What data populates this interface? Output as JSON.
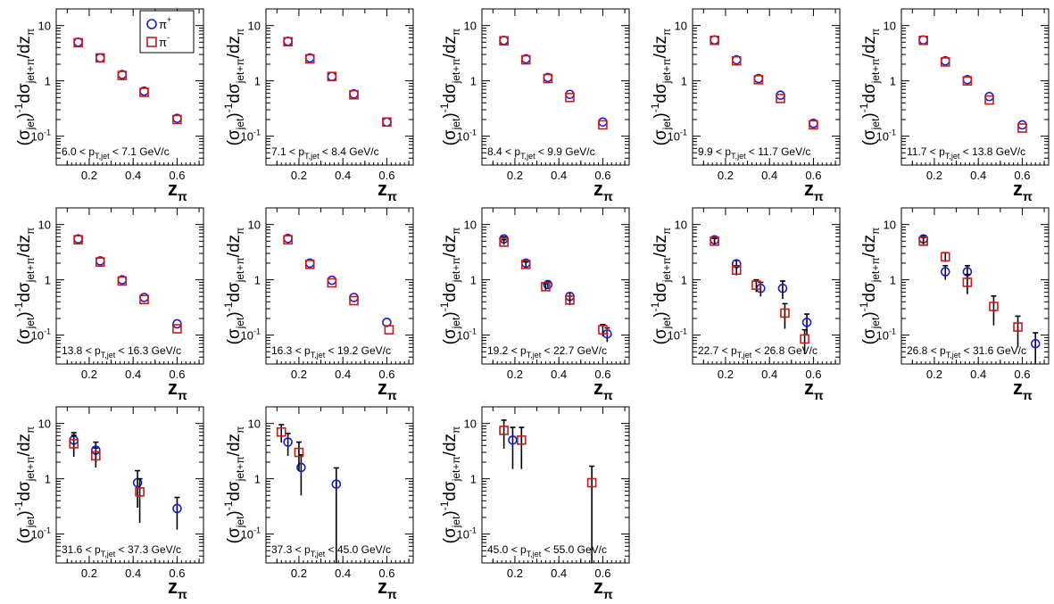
{
  "chart_data": {
    "type": "scatter",
    "yscale": "log",
    "ylim": [
      0.03,
      20
    ],
    "xlim": [
      0.05,
      0.72
    ],
    "xticks": [
      "0.2",
      "0.4",
      "0.6"
    ],
    "xtick_values": [
      0.2,
      0.4,
      0.6
    ],
    "yticks": [
      {
        "value": 10,
        "base": "10",
        "exp": ""
      },
      {
        "value": 1,
        "base": "1",
        "exp": ""
      },
      {
        "value": 0.1,
        "base": "10",
        "exp": "-1"
      }
    ],
    "xlabel": {
      "main": "z",
      "sub": "π"
    },
    "ylabel": {
      "p1": "(σ",
      "s1": "jet",
      "p2": ")",
      "sup": "-1",
      "p3": "dσ",
      "s2": "jet+π",
      "p4": "/dz",
      "s3": "π"
    },
    "legend": [
      {
        "name": "π",
        "sup": "+",
        "color": "#1a1ad6",
        "marker": "circle"
      },
      {
        "name": "π",
        "sup": "-",
        "color": "#cc1a1a",
        "marker": "square"
      }
    ],
    "legend_placement": "top-right of first panel",
    "panels": [
      {
        "lo": "6.0",
        "hi": "7.1",
        "unit": "GeV/c",
        "var": "p",
        "var_sub": "T,jet",
        "pi_plus": [
          {
            "x": 0.15,
            "y": 5.0
          },
          {
            "x": 0.25,
            "y": 2.6
          },
          {
            "x": 0.35,
            "y": 1.3
          },
          {
            "x": 0.45,
            "y": 0.65
          },
          {
            "x": 0.6,
            "y": 0.21
          }
        ],
        "pi_minus": [
          {
            "x": 0.15,
            "y": 4.9
          },
          {
            "x": 0.25,
            "y": 2.6
          },
          {
            "x": 0.35,
            "y": 1.25
          },
          {
            "x": 0.45,
            "y": 0.62
          },
          {
            "x": 0.6,
            "y": 0.2
          }
        ]
      },
      {
        "lo": "7.1",
        "hi": "8.4",
        "unit": "GeV/c",
        "var": "p",
        "var_sub": "T,jet",
        "pi_plus": [
          {
            "x": 0.15,
            "y": 5.2
          },
          {
            "x": 0.25,
            "y": 2.6
          },
          {
            "x": 0.35,
            "y": 1.2
          },
          {
            "x": 0.45,
            "y": 0.58
          },
          {
            "x": 0.6,
            "y": 0.18
          }
        ],
        "pi_minus": [
          {
            "x": 0.15,
            "y": 5.1
          },
          {
            "x": 0.25,
            "y": 2.5
          },
          {
            "x": 0.35,
            "y": 1.2
          },
          {
            "x": 0.45,
            "y": 0.56
          },
          {
            "x": 0.6,
            "y": 0.18
          }
        ]
      },
      {
        "lo": "8.4",
        "hi": "9.9",
        "unit": "GeV/c",
        "var": "p",
        "var_sub": "T,jet",
        "pi_plus": [
          {
            "x": 0.15,
            "y": 5.4
          },
          {
            "x": 0.25,
            "y": 2.5
          },
          {
            "x": 0.35,
            "y": 1.15
          },
          {
            "x": 0.45,
            "y": 0.57
          },
          {
            "x": 0.6,
            "y": 0.18
          }
        ],
        "pi_minus": [
          {
            "x": 0.15,
            "y": 5.3
          },
          {
            "x": 0.25,
            "y": 2.4
          },
          {
            "x": 0.35,
            "y": 1.1
          },
          {
            "x": 0.45,
            "y": 0.5
          },
          {
            "x": 0.6,
            "y": 0.16
          }
        ]
      },
      {
        "lo": "9.9",
        "hi": "11.7",
        "unit": "GeV/c",
        "var": "p",
        "var_sub": "T,jet",
        "pi_plus": [
          {
            "x": 0.15,
            "y": 5.5
          },
          {
            "x": 0.25,
            "y": 2.4
          },
          {
            "x": 0.35,
            "y": 1.1
          },
          {
            "x": 0.45,
            "y": 0.55
          },
          {
            "x": 0.6,
            "y": 0.17
          }
        ],
        "pi_minus": [
          {
            "x": 0.15,
            "y": 5.4
          },
          {
            "x": 0.25,
            "y": 2.3
          },
          {
            "x": 0.35,
            "y": 1.05
          },
          {
            "x": 0.45,
            "y": 0.48
          },
          {
            "x": 0.6,
            "y": 0.16
          }
        ]
      },
      {
        "lo": "11.7",
        "hi": "13.8",
        "unit": "GeV/c",
        "var": "p",
        "var_sub": "T,jet",
        "pi_plus": [
          {
            "x": 0.15,
            "y": 5.5
          },
          {
            "x": 0.25,
            "y": 2.3
          },
          {
            "x": 0.35,
            "y": 1.05
          },
          {
            "x": 0.45,
            "y": 0.52
          },
          {
            "x": 0.6,
            "y": 0.16
          }
        ],
        "pi_minus": [
          {
            "x": 0.15,
            "y": 5.4
          },
          {
            "x": 0.25,
            "y": 2.2
          },
          {
            "x": 0.35,
            "y": 1.0
          },
          {
            "x": 0.45,
            "y": 0.45
          },
          {
            "x": 0.6,
            "y": 0.14
          }
        ]
      },
      {
        "lo": "13.8",
        "hi": "16.3",
        "unit": "GeV/c",
        "var": "p",
        "var_sub": "T,jet",
        "pi_plus": [
          {
            "x": 0.15,
            "y": 5.5
          },
          {
            "x": 0.25,
            "y": 2.2
          },
          {
            "x": 0.35,
            "y": 1.0
          },
          {
            "x": 0.45,
            "y": 0.48
          },
          {
            "x": 0.6,
            "y": 0.16
          }
        ],
        "pi_minus": [
          {
            "x": 0.15,
            "y": 5.3
          },
          {
            "x": 0.25,
            "y": 2.1
          },
          {
            "x": 0.35,
            "y": 0.95
          },
          {
            "x": 0.45,
            "y": 0.44
          },
          {
            "x": 0.6,
            "y": 0.13
          }
        ]
      },
      {
        "lo": "16.3",
        "hi": "19.2",
        "unit": "GeV/c",
        "var": "p",
        "var_sub": "T,jet",
        "pi_plus": [
          {
            "x": 0.15,
            "y": 5.6
          },
          {
            "x": 0.25,
            "y": 2.0
          },
          {
            "x": 0.35,
            "y": 0.98
          },
          {
            "x": 0.45,
            "y": 0.48
          },
          {
            "x": 0.6,
            "y": 0.17
          }
        ],
        "pi_minus": [
          {
            "x": 0.15,
            "y": 5.3
          },
          {
            "x": 0.25,
            "y": 1.9
          },
          {
            "x": 0.35,
            "y": 0.88
          },
          {
            "x": 0.45,
            "y": 0.42
          },
          {
            "x": 0.61,
            "y": 0.125
          }
        ]
      },
      {
        "lo": "19.2",
        "hi": "22.7",
        "unit": "GeV/c",
        "var": "p",
        "var_sub": "T,jet",
        "pi_plus": [
          {
            "x": 0.15,
            "y": 5.5,
            "e": 0.5
          },
          {
            "x": 0.25,
            "y": 2.0,
            "e": 0.2
          },
          {
            "x": 0.35,
            "y": 0.82,
            "e": 0.1
          },
          {
            "x": 0.45,
            "y": 0.5,
            "e": 0.08
          },
          {
            "x": 0.62,
            "y": 0.105,
            "e": 0.03
          }
        ],
        "pi_minus": [
          {
            "x": 0.15,
            "y": 4.8,
            "e": 0.5
          },
          {
            "x": 0.25,
            "y": 1.9,
            "e": 0.2
          },
          {
            "x": 0.34,
            "y": 0.75,
            "e": 0.1
          },
          {
            "x": 0.45,
            "y": 0.43,
            "e": 0.08
          },
          {
            "x": 0.6,
            "y": 0.125,
            "e": 0.03
          }
        ]
      },
      {
        "lo": "22.7",
        "hi": "26.8",
        "unit": "GeV/c",
        "var": "p",
        "var_sub": "T,jet",
        "pi_plus": [
          {
            "x": 0.15,
            "y": 5.3,
            "e": 0.6
          },
          {
            "x": 0.25,
            "y": 1.95,
            "e": 0.3
          },
          {
            "x": 0.36,
            "y": 0.7,
            "e": 0.2
          },
          {
            "x": 0.46,
            "y": 0.7,
            "e": 0.25
          },
          {
            "x": 0.57,
            "y": 0.17,
            "e": 0.07
          }
        ],
        "pi_minus": [
          {
            "x": 0.15,
            "y": 5.0,
            "e": 0.6
          },
          {
            "x": 0.25,
            "y": 1.5,
            "e": 0.3
          },
          {
            "x": 0.34,
            "y": 0.8,
            "e": 0.2
          },
          {
            "x": 0.47,
            "y": 0.25,
            "e": 0.12
          },
          {
            "x": 0.56,
            "y": 0.085,
            "e": 0.04
          }
        ]
      },
      {
        "lo": "26.8",
        "hi": "31.6",
        "unit": "GeV/c",
        "var": "p",
        "var_sub": "T,jet",
        "pi_plus": [
          {
            "x": 0.15,
            "y": 5.5,
            "e": 0.8
          },
          {
            "x": 0.25,
            "y": 1.4,
            "e": 0.4
          },
          {
            "x": 0.35,
            "y": 1.4,
            "e": 0.4
          },
          {
            "x": 0.66,
            "y": 0.07,
            "e": 0.04
          }
        ],
        "pi_minus": [
          {
            "x": 0.15,
            "y": 5.0,
            "e": 0.8
          },
          {
            "x": 0.25,
            "y": 2.6,
            "e": 0.5
          },
          {
            "x": 0.35,
            "y": 0.9,
            "e": 0.35
          },
          {
            "x": 0.47,
            "y": 0.33,
            "e": 0.18
          },
          {
            "x": 0.58,
            "y": 0.14,
            "e": 0.08
          }
        ]
      },
      {
        "lo": "31.6",
        "hi": "37.3",
        "unit": "GeV/c",
        "var": "p",
        "var_sub": "T,jet",
        "pi_plus": [
          {
            "x": 0.13,
            "y": 5.0,
            "e": 1.8
          },
          {
            "x": 0.23,
            "y": 3.3,
            "e": 1.3
          },
          {
            "x": 0.42,
            "y": 0.85,
            "e": 0.55
          },
          {
            "x": 0.6,
            "y": 0.29,
            "e": 0.17
          }
        ],
        "pi_minus": [
          {
            "x": 0.13,
            "y": 4.3,
            "e": 1.8
          },
          {
            "x": 0.23,
            "y": 2.6,
            "e": 1.0
          },
          {
            "x": 0.43,
            "y": 0.58,
            "e": 0.42
          }
        ]
      },
      {
        "lo": "37.3",
        "hi": "45.0",
        "unit": "GeV/c",
        "var": "p",
        "var_sub": "T,jet",
        "pi_plus": [
          {
            "x": 0.15,
            "y": 4.6,
            "e": 2.0
          },
          {
            "x": 0.21,
            "y": 1.6,
            "e": 1.1
          },
          {
            "x": 0.37,
            "y": 0.8,
            "e": 0.77
          }
        ],
        "pi_minus": [
          {
            "x": 0.12,
            "y": 7.0,
            "e": 2.5
          },
          {
            "x": 0.2,
            "y": 3.0,
            "e": 1.6
          }
        ]
      },
      {
        "lo": "45.0",
        "hi": "55.0",
        "unit": "GeV/c",
        "var": "p",
        "var_sub": "T,jet",
        "pi_plus": [
          {
            "x": 0.19,
            "y": 5.0,
            "e": 3.5
          }
        ],
        "pi_minus": [
          {
            "x": 0.15,
            "y": 7.5,
            "e": 4.0
          },
          {
            "x": 0.23,
            "y": 5.0,
            "e": 3.5
          },
          {
            "x": 0.55,
            "y": 0.85,
            "e": 0.84
          }
        ]
      }
    ]
  }
}
